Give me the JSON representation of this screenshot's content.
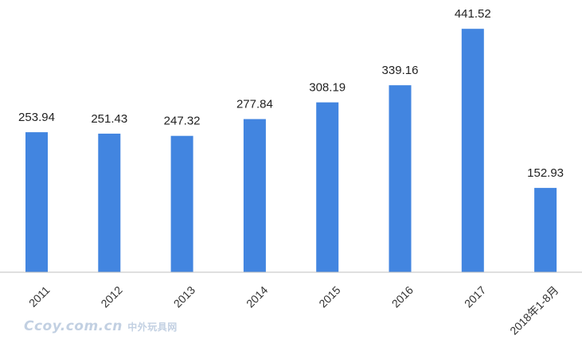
{
  "chart_data": {
    "type": "bar",
    "categories": [
      "2011",
      "2012",
      "2013",
      "2014",
      "2015",
      "2016",
      "2017",
      "2018年1-8月"
    ],
    "values": [
      253.94,
      251.43,
      247.32,
      277.84,
      308.19,
      339.16,
      441.52,
      152.93
    ],
    "value_labels": [
      "253.94",
      "251.43",
      "247.32",
      "277.84",
      "308.19",
      "339.16",
      "441.52",
      "152.93"
    ],
    "title": "",
    "xlabel": "",
    "ylabel": "",
    "ylim": [
      0,
      460
    ],
    "grid": false,
    "legend": "none",
    "bar_color": "#4285e0",
    "axis_color": "#bfbfbf"
  },
  "watermark": {
    "text": "Ccoy.com.cn",
    "subtext": "中外玩具网"
  }
}
